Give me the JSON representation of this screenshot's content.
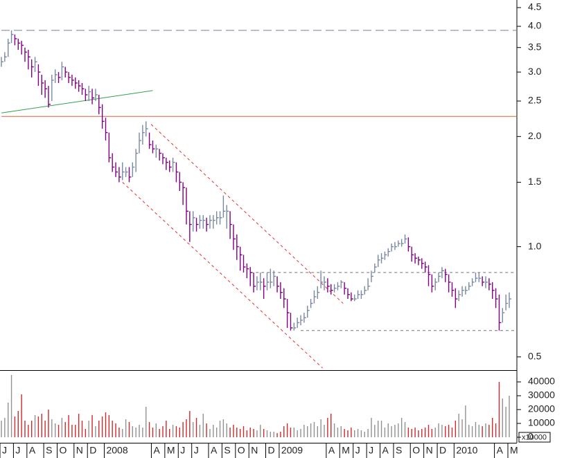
{
  "chart_data": {
    "type": "ohlc",
    "categories": [
      "J",
      null,
      null,
      null,
      "J",
      null,
      null,
      null,
      "A",
      null,
      null,
      null,
      null,
      "S",
      null,
      null,
      null,
      "O",
      null,
      null,
      null,
      null,
      "N",
      null,
      null,
      null,
      "D",
      null,
      null,
      null,
      null,
      "2008",
      null,
      null,
      null,
      null,
      null,
      null,
      null,
      null,
      null,
      null,
      null,
      null,
      null,
      "A",
      null,
      null,
      null,
      "M",
      null,
      null,
      null,
      "J",
      null,
      null,
      null,
      "J",
      null,
      null,
      null,
      null,
      "A",
      null,
      null,
      null,
      "S",
      null,
      null,
      null,
      "O",
      null,
      null,
      null,
      "N",
      null,
      null,
      null,
      null,
      "D",
      null,
      null,
      null,
      "2009",
      null,
      null,
      null,
      null,
      null,
      null,
      null,
      null,
      null,
      null,
      null,
      null,
      null,
      "A",
      null,
      null,
      null,
      "M",
      null,
      null,
      null,
      "J",
      null,
      null,
      null,
      "J",
      null,
      null,
      null,
      "A",
      null,
      null,
      null,
      "S",
      null,
      null,
      null,
      null,
      "O",
      null,
      null,
      null,
      "N",
      null,
      null,
      null,
      "D",
      null,
      null,
      null,
      null,
      "2010",
      null,
      null,
      null,
      null,
      null,
      null,
      null,
      null,
      null,
      null,
      null,
      "A",
      null,
      null,
      null,
      "M"
    ],
    "close": [
      3.2,
      3.3,
      3.6,
      3.8,
      3.7,
      3.6,
      3.55,
      3.4,
      3.3,
      3.1,
      3.2,
      3.0,
      2.8,
      2.7,
      2.45,
      2.85,
      2.95,
      2.9,
      3.1,
      3.0,
      2.9,
      2.85,
      2.8,
      2.75,
      2.7,
      2.6,
      2.65,
      2.55,
      2.6,
      2.4,
      2.2,
      2.05,
      1.75,
      1.65,
      1.6,
      1.55,
      1.6,
      1.6,
      1.55,
      1.65,
      1.8,
      1.95,
      2.05,
      2.1,
      1.9,
      1.85,
      1.85,
      1.8,
      1.75,
      1.7,
      1.65,
      1.7,
      1.6,
      1.5,
      1.45,
      1.25,
      1.15,
      1.2,
      1.15,
      1.18,
      1.18,
      1.15,
      1.18,
      1.18,
      1.2,
      1.2,
      1.25,
      1.25,
      1.15,
      1.05,
      1.0,
      0.95,
      0.88,
      0.87,
      0.85,
      0.78,
      0.8,
      0.8,
      0.78,
      0.8,
      0.8,
      0.83,
      0.78,
      0.75,
      0.72,
      0.66,
      0.6,
      0.6,
      0.62,
      0.63,
      0.64,
      0.67,
      0.7,
      0.73,
      0.75,
      0.8,
      0.8,
      0.78,
      0.76,
      0.77,
      0.78,
      0.8,
      0.77,
      0.74,
      0.72,
      0.72,
      0.74,
      0.74,
      0.76,
      0.78,
      0.83,
      0.88,
      0.92,
      0.93,
      0.95,
      0.97,
      1.0,
      1.0,
      1.02,
      1.02,
      1.05,
      1.0,
      0.95,
      0.93,
      0.92,
      0.9,
      0.88,
      0.84,
      0.78,
      0.8,
      0.83,
      0.86,
      0.84,
      0.8,
      0.76,
      0.72,
      0.74,
      0.76,
      0.76,
      0.78,
      0.8,
      0.82,
      0.82,
      0.8,
      0.8,
      0.79,
      0.76,
      0.72,
      0.62,
      0.66,
      0.7,
      0.72
    ],
    "high": [
      3.3,
      3.4,
      3.7,
      3.9,
      3.8,
      3.7,
      3.65,
      3.5,
      3.45,
      3.25,
      3.3,
      3.15,
      2.95,
      2.85,
      2.75,
      2.95,
      3.05,
      3.0,
      3.2,
      3.1,
      3.0,
      2.95,
      2.9,
      2.85,
      2.8,
      2.7,
      2.75,
      2.7,
      2.7,
      2.6,
      2.45,
      2.25,
      2.05,
      1.8,
      1.7,
      1.65,
      1.7,
      1.65,
      1.65,
      1.7,
      1.85,
      2.05,
      2.15,
      2.2,
      2.05,
      1.95,
      1.9,
      1.85,
      1.8,
      1.75,
      1.72,
      1.75,
      1.7,
      1.6,
      1.5,
      1.45,
      1.25,
      1.25,
      1.2,
      1.22,
      1.22,
      1.2,
      1.22,
      1.22,
      1.25,
      1.25,
      1.38,
      1.3,
      1.25,
      1.15,
      1.08,
      1.0,
      0.95,
      0.9,
      0.88,
      0.85,
      0.83,
      0.85,
      0.82,
      0.85,
      0.87,
      0.86,
      0.83,
      0.8,
      0.77,
      0.72,
      0.66,
      0.62,
      0.64,
      0.65,
      0.66,
      0.69,
      0.72,
      0.76,
      0.78,
      0.86,
      0.83,
      0.82,
      0.79,
      0.79,
      0.8,
      0.81,
      0.8,
      0.77,
      0.75,
      0.74,
      0.76,
      0.76,
      0.78,
      0.82,
      0.86,
      0.9,
      0.95,
      0.96,
      0.97,
      0.99,
      1.02,
      1.03,
      1.04,
      1.05,
      1.08,
      1.06,
      1.0,
      0.96,
      0.94,
      0.93,
      0.91,
      0.89,
      0.84,
      0.82,
      0.85,
      0.88,
      0.87,
      0.84,
      0.8,
      0.77,
      0.76,
      0.78,
      0.78,
      0.8,
      0.82,
      0.85,
      0.85,
      0.83,
      0.83,
      0.82,
      0.8,
      0.77,
      0.74,
      0.68,
      0.74,
      0.75
    ],
    "low": [
      3.1,
      3.2,
      3.3,
      3.6,
      3.55,
      3.45,
      3.35,
      3.2,
      3.05,
      2.9,
      3.0,
      2.75,
      2.6,
      2.55,
      2.4,
      2.5,
      2.8,
      2.8,
      2.85,
      2.9,
      2.8,
      2.75,
      2.7,
      2.65,
      2.6,
      2.5,
      2.5,
      2.45,
      2.5,
      2.3,
      2.1,
      1.95,
      1.7,
      1.6,
      1.55,
      1.5,
      1.52,
      1.55,
      1.5,
      1.55,
      1.6,
      1.8,
      1.9,
      2.0,
      1.85,
      1.8,
      1.75,
      1.72,
      1.68,
      1.62,
      1.6,
      1.6,
      1.5,
      1.42,
      1.3,
      1.15,
      1.03,
      1.1,
      1.1,
      1.12,
      1.12,
      1.1,
      1.12,
      1.12,
      1.15,
      1.15,
      1.2,
      1.12,
      1.05,
      0.98,
      0.92,
      0.86,
      0.85,
      0.82,
      0.78,
      0.75,
      0.76,
      0.76,
      0.72,
      0.76,
      0.77,
      0.78,
      0.75,
      0.72,
      0.68,
      0.6,
      0.59,
      0.59,
      0.6,
      0.61,
      0.62,
      0.64,
      0.68,
      0.7,
      0.72,
      0.77,
      0.76,
      0.75,
      0.74,
      0.75,
      0.76,
      0.77,
      0.74,
      0.72,
      0.71,
      0.71,
      0.72,
      0.72,
      0.74,
      0.76,
      0.8,
      0.85,
      0.88,
      0.9,
      0.92,
      0.94,
      0.97,
      0.98,
      1.0,
      1.0,
      1.02,
      0.97,
      0.91,
      0.9,
      0.89,
      0.87,
      0.85,
      0.78,
      0.75,
      0.76,
      0.8,
      0.82,
      0.8,
      0.75,
      0.73,
      0.68,
      0.71,
      0.73,
      0.74,
      0.76,
      0.78,
      0.8,
      0.8,
      0.78,
      0.77,
      0.76,
      0.72,
      0.68,
      0.59,
      0.62,
      0.67,
      0.68
    ],
    "volume": [
      12000,
      14000,
      25000,
      45000,
      15000,
      19000,
      31000,
      12000,
      9000,
      12000,
      16000,
      15000,
      17000,
      12000,
      20000,
      13000,
      10000,
      9000,
      14000,
      11000,
      16000,
      9000,
      9000,
      17000,
      12000,
      6000,
      12000,
      16000,
      8000,
      12000,
      15000,
      18000,
      16000,
      12000,
      10000,
      7000,
      6000,
      13000,
      11000,
      8000,
      7000,
      9000,
      7000,
      22000,
      11000,
      7000,
      10000,
      6000,
      8000,
      12000,
      6000,
      9000,
      8000,
      7000,
      11000,
      13000,
      19000,
      11000,
      14000,
      9000,
      17000,
      10000,
      6000,
      9000,
      7000,
      12000,
      13000,
      10000,
      7000,
      9000,
      7000,
      6000,
      8000,
      5000,
      7000,
      6000,
      5000,
      9000,
      6000,
      5000,
      4000,
      4000,
      3000,
      4000,
      8000,
      10000,
      7000,
      7000,
      5000,
      6000,
      9000,
      8000,
      10000,
      11000,
      8000,
      13000,
      9000,
      14000,
      17000,
      10000,
      7000,
      8000,
      6000,
      5000,
      7000,
      5000,
      6000,
      5000,
      4000,
      6000,
      14000,
      9000,
      12000,
      12000,
      7000,
      10000,
      8000,
      9000,
      10000,
      14000,
      11000,
      7000,
      6000,
      7000,
      5000,
      6000,
      7000,
      9000,
      6000,
      7000,
      10000,
      9000,
      8000,
      9000,
      7000,
      12000,
      17000,
      13000,
      23000,
      9000,
      8000,
      11000,
      9000,
      8000,
      10000,
      9000,
      14000,
      10000,
      40000,
      28000,
      22000,
      30000
    ],
    "log_scale": true,
    "ylim": [
      0.46,
      4.72
    ],
    "yticks": [
      0.5,
      {
        "value": 1,
        "label": "1.0"
      },
      1.5,
      {
        "value": 2,
        "label": "2.0"
      },
      2.5,
      {
        "value": 3,
        "label": "3.0"
      },
      3.5,
      {
        "value": 4,
        "label": "4.0"
      },
      4.5
    ],
    "volume_ylim": [
      0,
      47500
    ],
    "volume_yticks": [
      0,
      10000,
      20000,
      30000,
      40000
    ],
    "volume_multiplier_label": "x10000",
    "up_color": "#7888a0",
    "down_color": "#800080",
    "volume_up_color": "#909090",
    "volume_down_color": "#d02828",
    "hlines": [
      {
        "value": 3.9,
        "color": "#7080a0",
        "style": "dashed",
        "start": 0
      },
      {
        "value": 2.27,
        "color": "#e06030",
        "style": "solid",
        "start": 0
      },
      {
        "value": 0.85,
        "color": "#707080",
        "style": "dotted",
        "start": 74
      },
      {
        "value": 0.59,
        "color": "#707080",
        "style": "dotted",
        "start": 89
      }
    ],
    "trendlines": [
      {
        "color": "#30a050",
        "style": "solid",
        "points": [
          [
            0,
            2.32
          ],
          [
            45,
            2.67
          ]
        ]
      },
      {
        "color": "#e03030",
        "style": "dotted",
        "points": [
          [
            44.5,
            2.16
          ],
          [
            101.6,
            0.7
          ]
        ]
      },
      {
        "color": "#e03030",
        "style": "dotted",
        "points": [
          [
            36,
            1.5
          ],
          [
            95.5,
            0.466
          ]
        ]
      }
    ]
  }
}
